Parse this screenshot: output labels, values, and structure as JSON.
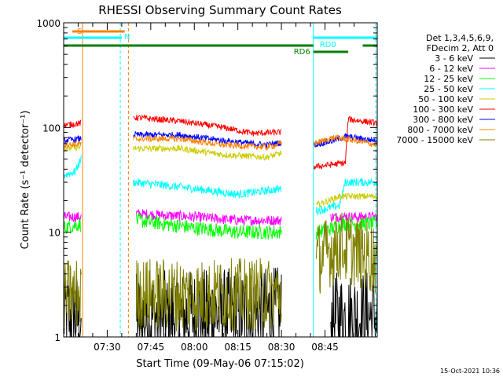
{
  "chart_data": {
    "type": "line",
    "title": "RHESSI Observing Summary Count Rates",
    "ylabel": "Count Rate (s⁻¹ detector⁻¹)",
    "xlabel": "Start Time (09-May-06 07:15:02)",
    "yscale": "log",
    "ylim": [
      1,
      1000
    ],
    "xlim_minutes": [
      0,
      108
    ],
    "x_ticks": [
      {
        "t": 15,
        "label": "07:30"
      },
      {
        "t": 30,
        "label": "07:45"
      },
      {
        "t": 45,
        "label": "08:00"
      },
      {
        "t": 60,
        "label": "08:15"
      },
      {
        "t": 75,
        "label": "08:30"
      },
      {
        "t": 90,
        "label": "08:45"
      }
    ],
    "y_ticks": [
      {
        "v": 1,
        "label": "1"
      },
      {
        "v": 10,
        "label": "10"
      },
      {
        "v": 100,
        "label": "100"
      },
      {
        "v": 1000,
        "label": "1000"
      }
    ],
    "legend_header": [
      "Det 1,3,4,5,6,9,",
      "FDecim 2, Att 0"
    ],
    "legend_placement": "right",
    "series": [
      {
        "name": "3 - 6 keV",
        "color": "#000000",
        "noise": 0.45,
        "segments": [
          [
            [
              0,
              1.6
            ],
            [
              6,
              1.5
            ]
          ],
          [
            [
              25,
              1.5
            ],
            [
              45,
              1.6
            ],
            [
              75,
              1.7
            ]
          ],
          [
            [
              92,
              1.5
            ],
            [
              108,
              1.6
            ]
          ]
        ]
      },
      {
        "name": "6 - 12 keV",
        "color": "#ff00ff",
        "noise": 0.05,
        "segments": [
          [
            [
              0,
              14
            ],
            [
              6,
              14
            ]
          ],
          [
            [
              25,
              15
            ],
            [
              45,
              14
            ],
            [
              60,
              13
            ],
            [
              75,
              13
            ]
          ],
          [
            [
              92,
              14
            ],
            [
              108,
              14
            ]
          ]
        ]
      },
      {
        "name": "12 - 25 keV",
        "color": "#00ff00",
        "noise": 0.07,
        "segments": [
          [
            [
              0,
              11
            ],
            [
              6,
              12
            ]
          ],
          [
            [
              25,
              13
            ],
            [
              45,
              11
            ],
            [
              60,
              10
            ],
            [
              75,
              10
            ]
          ],
          [
            [
              87,
              10
            ],
            [
              93,
              11
            ],
            [
              96,
              12
            ],
            [
              108,
              12
            ]
          ]
        ]
      },
      {
        "name": "25 - 50 keV",
        "color": "#00ffff",
        "noise": 0.04,
        "segments": [
          [
            [
              0,
              35
            ],
            [
              4,
              38
            ],
            [
              6,
              50
            ]
          ],
          [
            [
              24,
              30
            ],
            [
              35,
              28
            ],
            [
              45,
              26
            ],
            [
              60,
              23
            ],
            [
              75,
              26
            ]
          ],
          [
            [
              87,
              16
            ],
            [
              95,
              18
            ],
            [
              97,
              30
            ],
            [
              108,
              30
            ]
          ]
        ]
      },
      {
        "name": "50 - 100 keV",
        "color": "#cccc00",
        "noise": 0.03,
        "segments": [
          [
            [
              0,
              63
            ],
            [
              6,
              65
            ]
          ],
          [
            [
              24,
              63
            ],
            [
              40,
              63
            ],
            [
              55,
              55
            ],
            [
              70,
              52
            ],
            [
              75,
              57
            ]
          ],
          [
            [
              87,
              18
            ],
            [
              95,
              22
            ],
            [
              108,
              22
            ]
          ]
        ]
      },
      {
        "name": "100 - 300 keV",
        "color": "#ff0000",
        "noise": 0.03,
        "segments": [
          [
            [
              0,
              105
            ],
            [
              6,
              110
            ]
          ],
          [
            [
              24,
              125
            ],
            [
              40,
              115
            ],
            [
              55,
              100
            ],
            [
              65,
              88
            ],
            [
              75,
              90
            ]
          ],
          [
            [
              86,
              42
            ],
            [
              97,
              46
            ],
            [
              98,
              120
            ],
            [
              108,
              110
            ]
          ]
        ]
      },
      {
        "name": "300 - 800 keV",
        "color": "#0000ff",
        "noise": 0.03,
        "segments": [
          [
            [
              0,
              75
            ],
            [
              6,
              78
            ]
          ],
          [
            [
              24,
              85
            ],
            [
              40,
              85
            ],
            [
              55,
              75
            ],
            [
              70,
              68
            ],
            [
              75,
              72
            ]
          ],
          [
            [
              86,
              68
            ],
            [
              93,
              75
            ],
            [
              97,
              82
            ],
            [
              108,
              75
            ]
          ]
        ]
      },
      {
        "name": "800 - 7000 keV",
        "color": "#ff8000",
        "noise": 0.03,
        "segments": [
          [
            [
              0,
              68
            ],
            [
              6,
              70
            ]
          ],
          [
            [
              24,
              78
            ],
            [
              40,
              78
            ],
            [
              55,
              68
            ],
            [
              70,
              65
            ],
            [
              75,
              70
            ]
          ],
          [
            [
              86,
              70
            ],
            [
              93,
              80
            ],
            [
              97,
              78
            ],
            [
              108,
              68
            ]
          ]
        ]
      },
      {
        "name": "7000 - 15000 keV",
        "color": "#808000",
        "noise": 0.35,
        "segments": [
          [
            [
              0,
              2.5
            ],
            [
              6,
              2.6
            ]
          ],
          [
            [
              25,
              2.6
            ],
            [
              45,
              2.5
            ],
            [
              75,
              2.6
            ]
          ],
          [
            [
              87,
              5.5
            ],
            [
              95,
              7.5
            ],
            [
              108,
              5.5
            ]
          ]
        ]
      }
    ],
    "annotations": [
      {
        "text": "S",
        "color": "#ff8000",
        "t_start": 3,
        "t_end": 21,
        "level": 1
      },
      {
        "text": "N",
        "color": "#00ffff",
        "t_start": 0,
        "t_end": 20,
        "level": 2
      },
      {
        "text": "RD0",
        "color": "#00ffff",
        "t_start": 86,
        "t_end": 108,
        "level": 2
      },
      {
        "text": "RD6",
        "color": "#008000",
        "t_start": 0,
        "t_end": 86,
        "level": 3
      },
      {
        "text": "",
        "color": "#008000",
        "t_start": 86,
        "t_end": 98,
        "level": 4
      },
      {
        "text": "",
        "color": "#008000",
        "t_start": 103,
        "t_end": 108,
        "level": 3
      }
    ],
    "vlines": [
      {
        "t": 6.5,
        "color": "#ff8000",
        "style": "solid"
      },
      {
        "t": 19.5,
        "color": "#00ffff",
        "style": "dashed"
      },
      {
        "t": 22.3,
        "color": "#ff8000",
        "style": "dashed"
      },
      {
        "t": 86,
        "color": "#00ffff",
        "style": "solid"
      },
      {
        "t": 107.5,
        "color": "#00ffff",
        "style": "dashed"
      }
    ]
  },
  "footer": {
    "timestamp": "15-Oct-2021 10:36"
  }
}
